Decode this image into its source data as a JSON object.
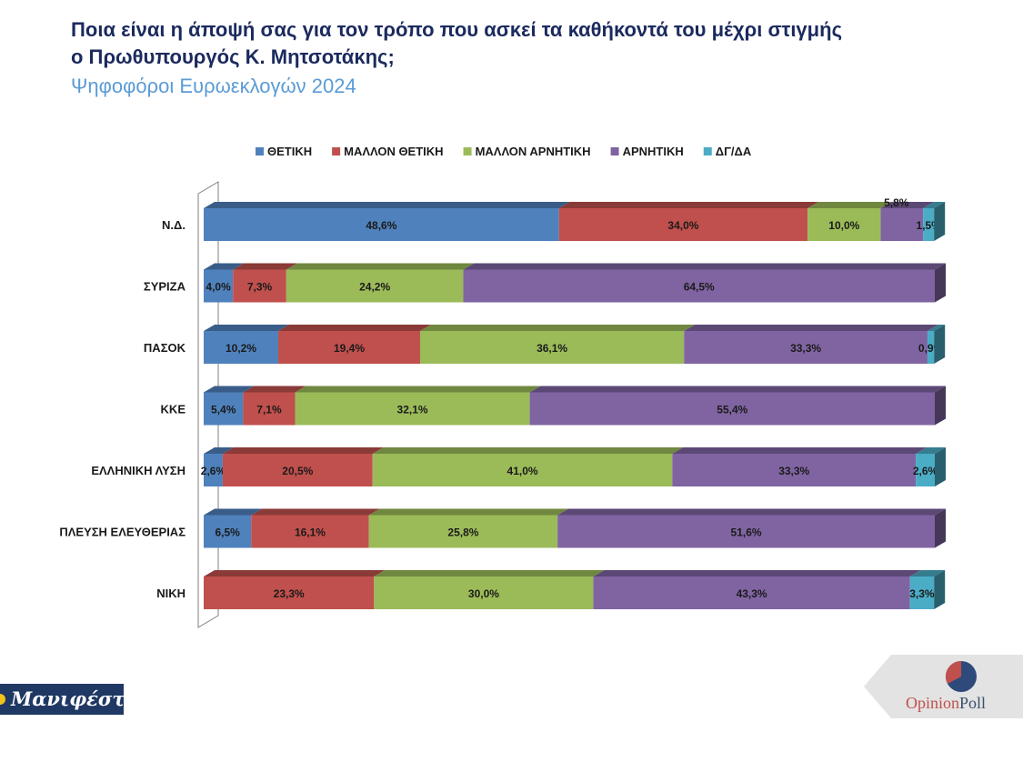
{
  "header": {
    "title_line1": "Ποια είναι η άποψή σας για τον τρόπο που ασκεί τα καθήκοντά του μέχρι στιγμής",
    "title_line2": "ο Πρωθυπουργός Κ. Μητσοτάκης;",
    "subtitle": "Ψηφοφόροι Ευρωεκλογών 2024"
  },
  "chart_data": {
    "type": "bar",
    "orientation": "horizontal",
    "stacked": true,
    "legend_position": "top",
    "grid": false,
    "categories": [
      "Ν.Δ.",
      "ΣΥΡΙΖΑ",
      "ΠΑΣΟΚ",
      "ΚΚΕ",
      "ΕΛΛΗΝΙΚΗ ΛΥΣΗ",
      "ΠΛΕΥΣΗ ΕΛΕΥΘΕΡΙΑΣ",
      "ΝΙΚΗ"
    ],
    "xlim": [
      0,
      100
    ],
    "series": [
      {
        "name": "ΘΕΤΙΚΗ",
        "color": "#4f81bd",
        "values": [
          48.6,
          4.0,
          10.2,
          5.4,
          2.6,
          6.5,
          0
        ]
      },
      {
        "name": "ΜΑΛΛΟΝ ΘΕΤΙΚΗ",
        "color": "#c0504d",
        "values": [
          34.0,
          7.3,
          19.4,
          7.1,
          20.5,
          16.1,
          23.3
        ]
      },
      {
        "name": "ΜΑΛΛΟΝ ΑΡΝΗΤΙΚΗ",
        "color": "#9bbb59",
        "values": [
          10.0,
          24.2,
          36.1,
          32.1,
          41.0,
          25.8,
          30.0
        ]
      },
      {
        "name": "ΑΡΝΗΤΙΚΗ",
        "color": "#8064a2",
        "values": [
          5.8,
          64.5,
          33.3,
          55.4,
          33.3,
          51.6,
          43.3
        ]
      },
      {
        "name": "ΔΓ/ΔΑ",
        "color": "#4bacc6",
        "values": [
          1.5,
          0,
          0.9,
          0,
          2.6,
          0,
          3.3
        ]
      }
    ],
    "data_labels": [
      [
        "48,6%",
        "34,0%",
        "10,0%",
        "5,8%",
        "1,5%"
      ],
      [
        "4,0%",
        "7,3%",
        "24,2%",
        "64,5%",
        ""
      ],
      [
        "10,2%",
        "19,4%",
        "36,1%",
        "33,3%",
        "0,9%"
      ],
      [
        "5,4%",
        "7,1%",
        "32,1%",
        "55,4%",
        ""
      ],
      [
        "2,6%",
        "20,5%",
        "41,0%",
        "33,3%",
        "2,6%"
      ],
      [
        "6,5%",
        "16,1%",
        "25,8%",
        "51,6%",
        ""
      ],
      [
        "",
        "23,3%",
        "30,0%",
        "43,3%",
        "3,3%"
      ]
    ]
  },
  "logos": {
    "left_brand": "Μανιφέστο",
    "right_brand_part1": "Opinion",
    "right_brand_part2": "Poll"
  }
}
